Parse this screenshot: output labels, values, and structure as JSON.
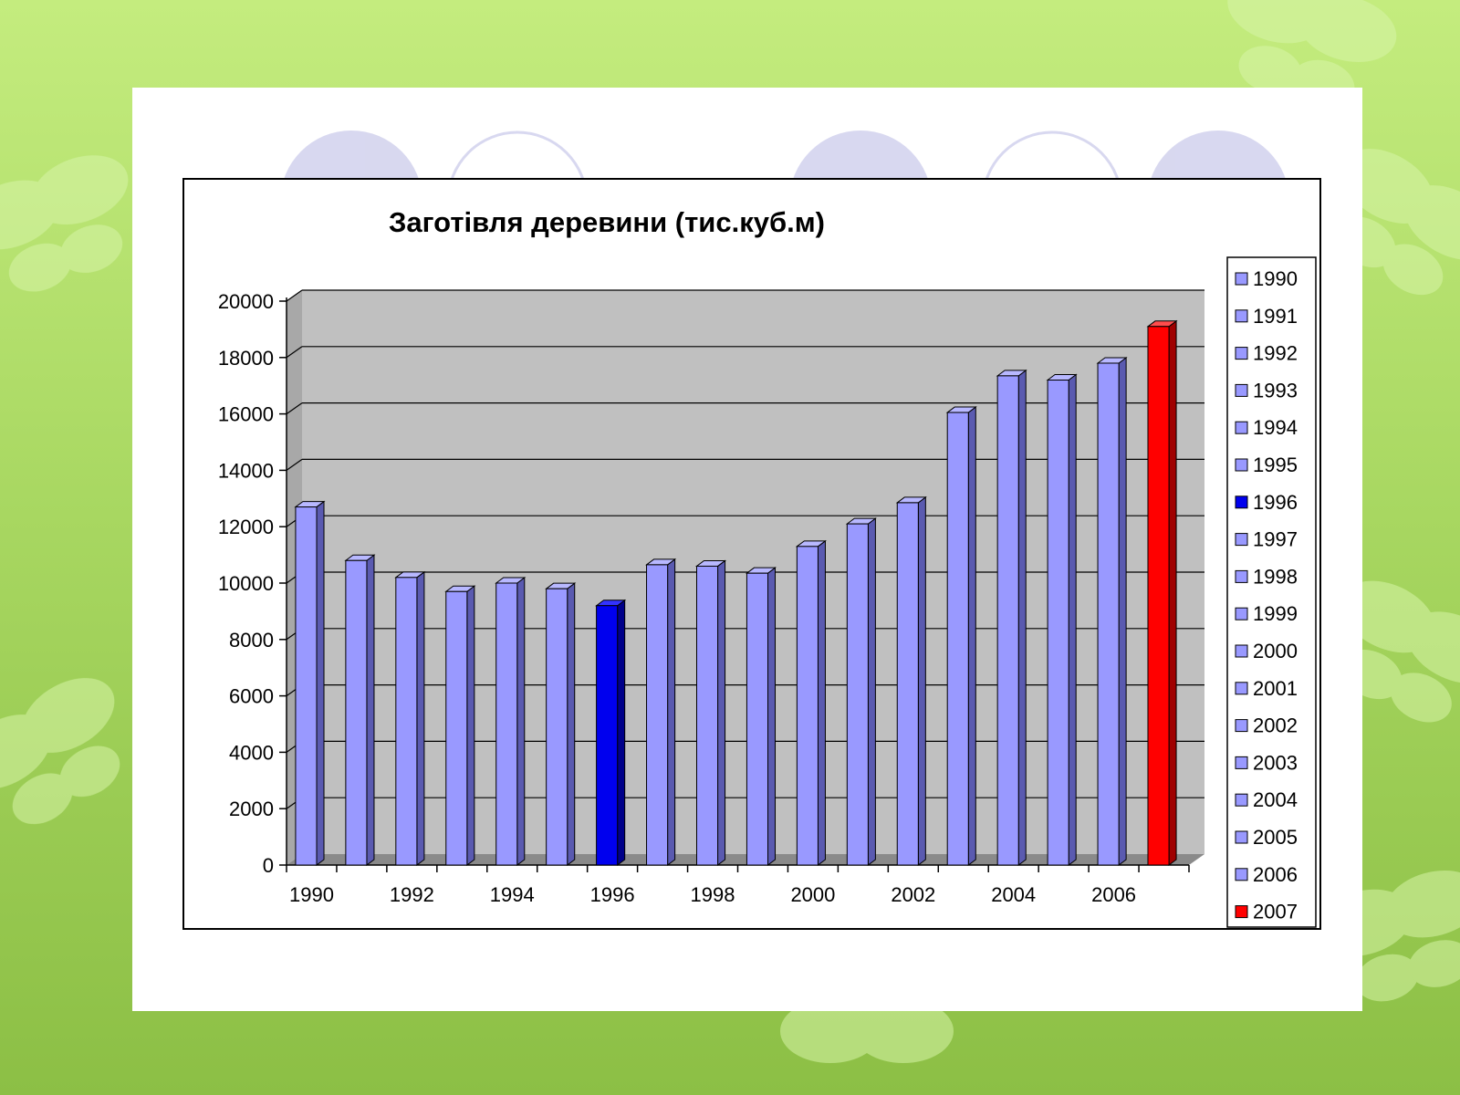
{
  "chart_data": {
    "type": "bar",
    "title": "Заготівля деревини (тис.куб.м)",
    "xlabel": "",
    "ylabel": "",
    "categories": [
      "1990",
      "1991",
      "1992",
      "1993",
      "1994",
      "1995",
      "1996",
      "1997",
      "1998",
      "1999",
      "2000",
      "2001",
      "2002",
      "2003",
      "2004",
      "2005",
      "2006",
      "2007"
    ],
    "values": [
      12700,
      10800,
      10200,
      9700,
      10000,
      9800,
      9200,
      10650,
      10600,
      10350,
      11300,
      12100,
      12850,
      16050,
      17350,
      17200,
      17800,
      19100
    ],
    "x_tick_labels": [
      "1990",
      "1992",
      "1994",
      "1996",
      "1998",
      "2000",
      "2002",
      "2004",
      "2006"
    ],
    "ylim": [
      0,
      20000
    ],
    "y_ticks": [
      0,
      2000,
      4000,
      6000,
      8000,
      10000,
      12000,
      14000,
      16000,
      18000,
      20000
    ],
    "grid": true,
    "legend": "right",
    "three_d": true,
    "colors": {
      "default": "#9999ff",
      "highlight_1996": "#0000ee",
      "highlight_2007": "#ff0000",
      "plot_background": "#c0c0c0"
    },
    "bar_colors": [
      "default",
      "default",
      "default",
      "default",
      "default",
      "default",
      "highlight_1996",
      "default",
      "default",
      "default",
      "default",
      "default",
      "default",
      "default",
      "default",
      "default",
      "default",
      "highlight_2007"
    ]
  }
}
